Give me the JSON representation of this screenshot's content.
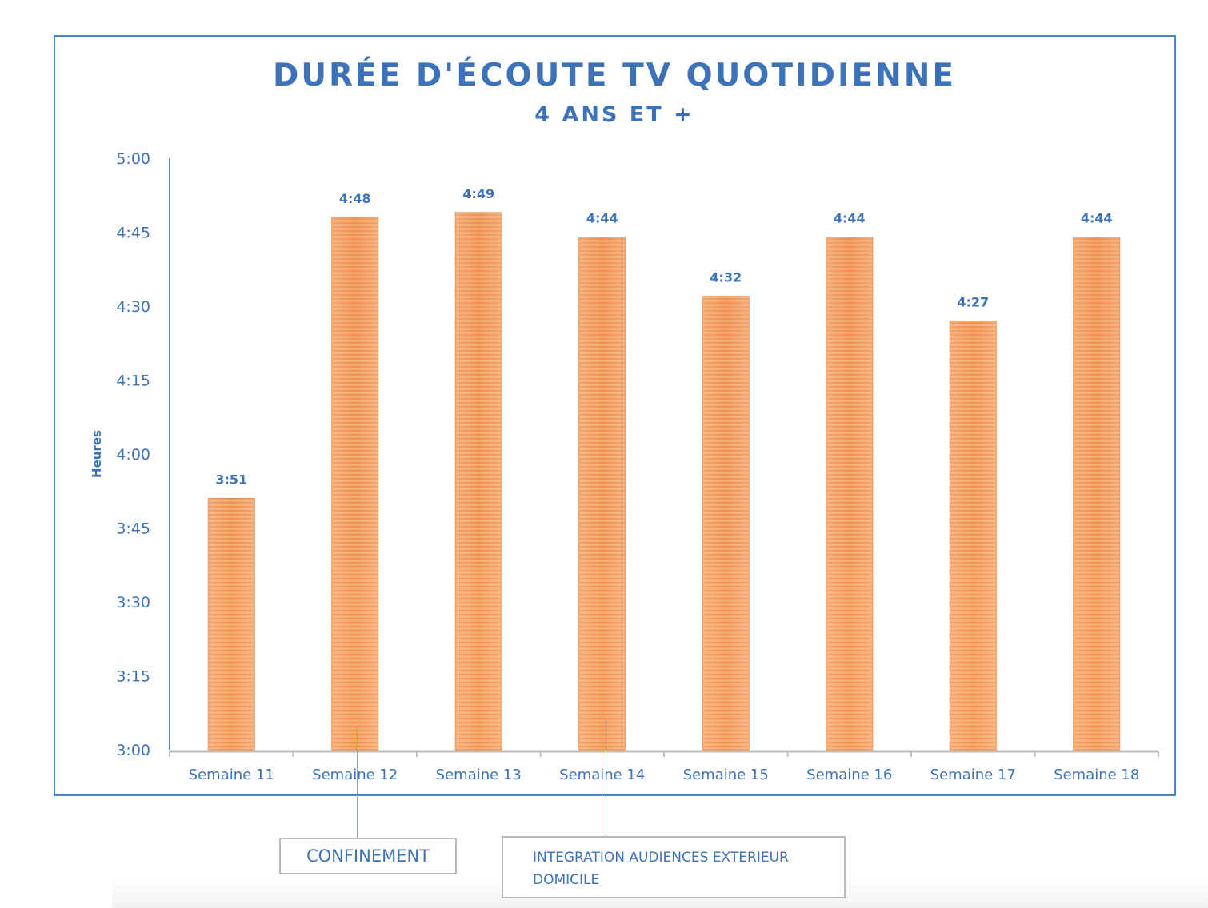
{
  "chart_data": {
    "type": "bar",
    "title": "DURÉE D'ÉCOUTE TV QUOTIDIENNE",
    "subtitle": "4 ANS ET +",
    "xlabel": "",
    "ylabel": "Heures",
    "categories": [
      "Semaine 11",
      "Semaine 12",
      "Semaine 13",
      "Semaine 14",
      "Semaine 15",
      "Semaine 16",
      "Semaine 17",
      "Semaine 18"
    ],
    "values": [
      231,
      288,
      289,
      284,
      272,
      284,
      267,
      284
    ],
    "value_labels": [
      "3:51",
      "4:48",
      "4:49",
      "4:44",
      "4:32",
      "4:44",
      "4:27",
      "4:44"
    ],
    "value_unit": "minutes",
    "ylim": [
      180,
      300
    ],
    "yticks": [
      180,
      195,
      210,
      225,
      240,
      255,
      270,
      285,
      300
    ],
    "ytick_labels": [
      "3:00",
      "3:15",
      "3:30",
      "3:45",
      "4:00",
      "4:15",
      "4:30",
      "4:45",
      "5:00"
    ],
    "grid": false,
    "legend": "none",
    "bar_color": "#f4a064",
    "bar_edge_color": "#ec8a43",
    "text_color": "#3d72b8",
    "annotations": [
      {
        "text": "CONFINEMENT",
        "category": "Semaine 12"
      },
      {
        "text_lines": [
          "INTEGRATION AUDIENCES EXTERIEUR",
          "DOMICILE"
        ],
        "category": "Semaine 14"
      }
    ]
  }
}
